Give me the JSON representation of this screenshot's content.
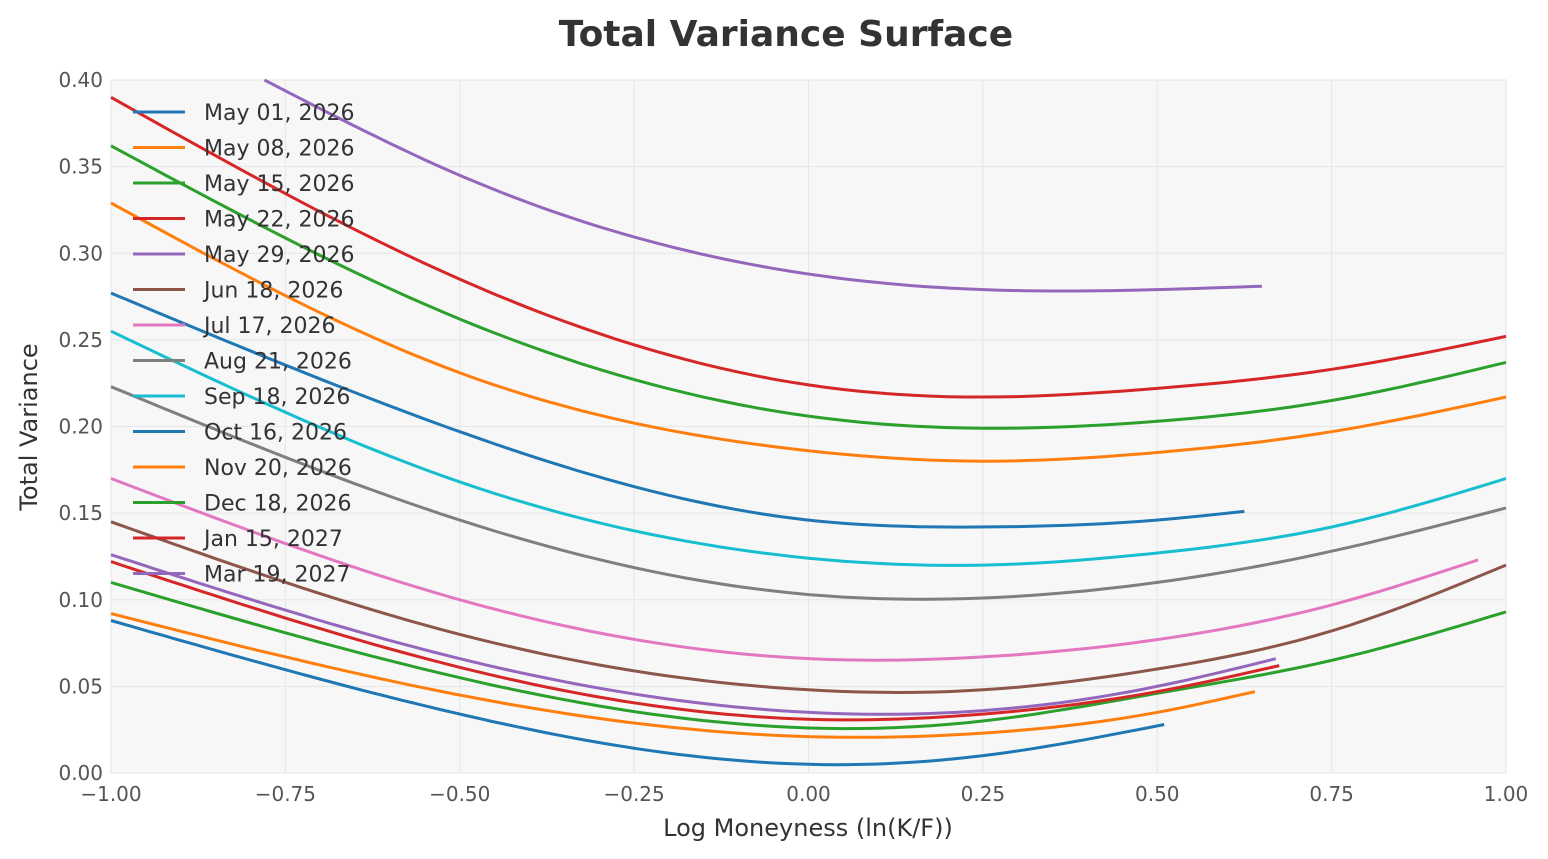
{
  "chart_data": {
    "type": "line",
    "title": "Total Variance Surface",
    "xlabel": "Log Moneyness (ln(K/F))",
    "ylabel": "Total Variance",
    "xlim": [
      -1.0,
      1.0
    ],
    "ylim": [
      0.0,
      0.4
    ],
    "xticks": [
      "−1.00",
      "−0.75",
      "−0.50",
      "−0.25",
      "0.00",
      "0.25",
      "0.50",
      "0.75",
      "1.00"
    ],
    "yticks": [
      "0.00",
      "0.05",
      "0.10",
      "0.15",
      "0.20",
      "0.25",
      "0.30",
      "0.35",
      "0.40"
    ],
    "grid": true,
    "legend_position": "upper-left",
    "series": [
      {
        "name": "May 01, 2026",
        "color": "#1f77b4",
        "x": [
          -1.0,
          -0.5,
          0.0,
          0.25,
          0.51
        ],
        "y": [
          0.088,
          0.034,
          0.005,
          0.01,
          0.028
        ]
      },
      {
        "name": "May 08, 2026",
        "color": "#ff7f0e",
        "x": [
          -1.0,
          -0.5,
          0.0,
          0.25,
          0.5,
          0.64
        ],
        "y": [
          0.092,
          0.045,
          0.021,
          0.023,
          0.035,
          0.047
        ]
      },
      {
        "name": "May 15, 2026",
        "color": "#2ca02c",
        "x": [
          -1.0,
          -0.5,
          0.0,
          0.25,
          0.5,
          0.75,
          1.0
        ],
        "y": [
          0.11,
          0.055,
          0.026,
          0.03,
          0.046,
          0.065,
          0.093
        ]
      },
      {
        "name": "May 22, 2026",
        "color": "#d62728",
        "x": [
          -1.0,
          -0.5,
          0.0,
          0.25,
          0.5,
          0.675
        ],
        "y": [
          0.122,
          0.061,
          0.031,
          0.034,
          0.047,
          0.062
        ]
      },
      {
        "name": "May 29, 2026",
        "color": "#9467bd",
        "x": [
          -1.0,
          -0.5,
          0.0,
          0.25,
          0.5,
          0.67
        ],
        "y": [
          0.126,
          0.066,
          0.035,
          0.036,
          0.05,
          0.066
        ]
      },
      {
        "name": "Jun 18, 2026",
        "color": "#8c564b",
        "x": [
          -1.0,
          -0.5,
          0.0,
          0.25,
          0.5,
          0.75,
          1.0
        ],
        "y": [
          0.145,
          0.08,
          0.048,
          0.048,
          0.06,
          0.082,
          0.12
        ]
      },
      {
        "name": "Jul 17, 2026",
        "color": "#e377c2",
        "x": [
          -1.0,
          -0.5,
          0.0,
          0.25,
          0.5,
          0.75,
          0.96
        ],
        "y": [
          0.17,
          0.1,
          0.066,
          0.067,
          0.077,
          0.097,
          0.123
        ]
      },
      {
        "name": "Aug 21, 2026",
        "color": "#7f7f7f",
        "x": [
          -1.0,
          -0.5,
          0.0,
          0.25,
          0.5,
          0.75,
          1.0
        ],
        "y": [
          0.223,
          0.146,
          0.103,
          0.101,
          0.11,
          0.128,
          0.153
        ]
      },
      {
        "name": "Sep 18, 2026",
        "color": "#17becf",
        "x": [
          -1.0,
          -0.5,
          0.0,
          0.25,
          0.5,
          0.75,
          1.0
        ],
        "y": [
          0.255,
          0.168,
          0.124,
          0.12,
          0.127,
          0.142,
          0.17
        ]
      },
      {
        "name": "Oct 16, 2026",
        "color": "#1f77b4",
        "x": [
          -1.0,
          -0.5,
          0.0,
          0.25,
          0.5,
          0.625
        ],
        "y": [
          0.277,
          0.197,
          0.146,
          0.142,
          0.146,
          0.151
        ]
      },
      {
        "name": "Nov 20, 2026",
        "color": "#ff7f0e",
        "x": [
          -1.0,
          -0.5,
          0.0,
          0.25,
          0.5,
          0.75,
          1.0
        ],
        "y": [
          0.329,
          0.231,
          0.186,
          0.18,
          0.185,
          0.197,
          0.217
        ]
      },
      {
        "name": "Dec 18, 2026",
        "color": "#2ca02c",
        "x": [
          -1.0,
          -0.5,
          0.0,
          0.25,
          0.5,
          0.75,
          1.0
        ],
        "y": [
          0.362,
          0.262,
          0.206,
          0.199,
          0.203,
          0.215,
          0.237
        ]
      },
      {
        "name": "Jan 15, 2027",
        "color": "#d62728",
        "x": [
          -1.0,
          -0.5,
          0.0,
          0.25,
          0.5,
          0.75,
          1.0
        ],
        "y": [
          0.39,
          0.285,
          0.224,
          0.217,
          0.222,
          0.233,
          0.252
        ]
      },
      {
        "name": "Mar 19, 2027",
        "color": "#9467bd",
        "x": [
          -0.78,
          -0.5,
          0.0,
          0.25,
          0.5,
          0.65
        ],
        "y": [
          0.4,
          0.345,
          0.288,
          0.279,
          0.279,
          0.281
        ]
      }
    ]
  }
}
